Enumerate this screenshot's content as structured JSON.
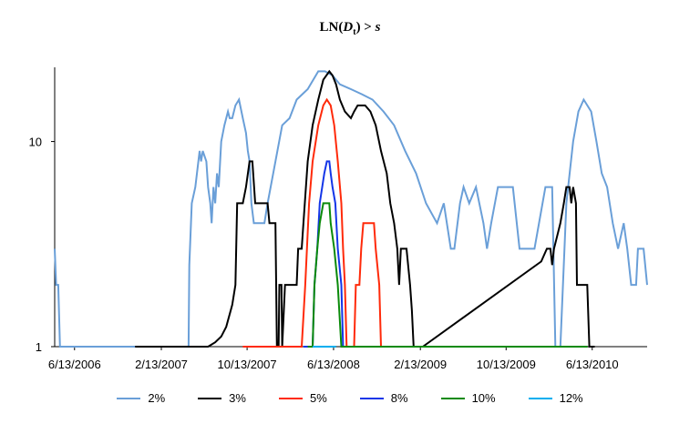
{
  "chart_data": {
    "type": "line",
    "title": "LN(Dt) > s",
    "title_main": "LN(",
    "title_italic_d": "D",
    "title_sub_t": "t",
    "title_rest": ") > ",
    "title_italic_s": "s",
    "yscale": "log",
    "ylim": [
      1,
      23
    ],
    "xlim": [
      "2006-04-18",
      "2010-11-15"
    ],
    "y_ticks": [
      1,
      10
    ],
    "y_tick_labels": [
      "1",
      "10"
    ],
    "x_ticks": [
      "2006-06-13",
      "2007-02-13",
      "2007-10-13",
      "2008-06-13",
      "2009-02-13",
      "2009-10-13",
      "2010-06-13"
    ],
    "x_tick_labels": [
      "6/13/2006",
      "2/13/2007",
      "10/13/2007",
      "6/13/2008",
      "2/13/2009",
      "10/13/2009",
      "6/13/2010"
    ],
    "grid": false,
    "legend_position": "bottom",
    "series": [
      {
        "name": "2%",
        "color": "#6a9fd8",
        "points": [
          [
            "2006-04-18",
            3
          ],
          [
            "2006-04-22",
            2
          ],
          [
            "2006-04-28",
            2
          ],
          [
            "2006-05-03",
            1
          ],
          [
            "2007-05-01",
            1
          ],
          [
            "2007-05-03",
            2.5
          ],
          [
            "2007-05-10",
            5
          ],
          [
            "2007-05-20",
            6
          ],
          [
            "2007-06-01",
            9
          ],
          [
            "2007-06-05",
            8
          ],
          [
            "2007-06-10",
            9
          ],
          [
            "2007-06-20",
            8
          ],
          [
            "2007-06-25",
            6
          ],
          [
            "2007-07-01",
            5
          ],
          [
            "2007-07-05",
            4
          ],
          [
            "2007-07-10",
            6
          ],
          [
            "2007-07-15",
            5
          ],
          [
            "2007-07-20",
            7
          ],
          [
            "2007-07-25",
            6
          ],
          [
            "2007-08-01",
            10
          ],
          [
            "2007-08-10",
            12
          ],
          [
            "2007-08-20",
            14
          ],
          [
            "2007-08-25",
            13
          ],
          [
            "2007-09-01",
            13
          ],
          [
            "2007-09-10",
            15
          ],
          [
            "2007-09-20",
            16
          ],
          [
            "2007-10-01",
            13
          ],
          [
            "2007-10-10",
            11
          ],
          [
            "2007-10-15",
            9
          ],
          [
            "2007-10-20",
            8
          ],
          [
            "2007-10-25",
            5
          ],
          [
            "2007-11-01",
            4
          ],
          [
            "2007-12-01",
            4
          ],
          [
            "2007-12-10",
            5
          ],
          [
            "2008-01-01",
            8
          ],
          [
            "2008-01-20",
            12
          ],
          [
            "2008-02-10",
            13
          ],
          [
            "2008-03-01",
            16
          ],
          [
            "2008-04-01",
            18
          ],
          [
            "2008-05-01",
            22
          ],
          [
            "2008-05-20",
            22
          ],
          [
            "2008-06-10",
            21
          ],
          [
            "2008-07-01",
            19
          ],
          [
            "2008-08-01",
            18
          ],
          [
            "2008-09-01",
            17
          ],
          [
            "2008-10-01",
            16
          ],
          [
            "2008-11-01",
            14
          ],
          [
            "2008-12-01",
            12
          ],
          [
            "2009-01-01",
            9
          ],
          [
            "2009-02-01",
            7
          ],
          [
            "2009-03-01",
            5
          ],
          [
            "2009-04-01",
            4
          ],
          [
            "2009-04-20",
            5
          ],
          [
            "2009-05-10",
            3
          ],
          [
            "2009-05-20",
            3
          ],
          [
            "2009-06-05",
            5
          ],
          [
            "2009-06-15",
            6
          ],
          [
            "2009-07-01",
            5
          ],
          [
            "2009-07-20",
            6
          ],
          [
            "2009-08-10",
            4
          ],
          [
            "2009-08-20",
            3
          ],
          [
            "2009-09-01",
            4
          ],
          [
            "2009-09-20",
            6
          ],
          [
            "2009-10-13",
            6
          ],
          [
            "2009-11-01",
            6
          ],
          [
            "2009-11-20",
            3
          ],
          [
            "2009-12-10",
            3
          ],
          [
            "2010-01-01",
            3
          ],
          [
            "2010-02-01",
            6
          ],
          [
            "2010-02-20",
            6
          ],
          [
            "2010-03-01",
            1
          ],
          [
            "2010-03-15",
            1
          ],
          [
            "2010-04-01",
            5
          ],
          [
            "2010-04-20",
            10
          ],
          [
            "2010-05-05",
            14
          ],
          [
            "2010-05-20",
            16
          ],
          [
            "2010-06-10",
            14
          ],
          [
            "2010-06-25",
            10
          ],
          [
            "2010-07-10",
            7
          ],
          [
            "2010-07-25",
            6
          ],
          [
            "2010-08-10",
            4
          ],
          [
            "2010-08-25",
            3
          ],
          [
            "2010-09-10",
            4
          ],
          [
            "2010-09-20",
            3
          ],
          [
            "2010-10-01",
            2
          ],
          [
            "2010-10-15",
            2
          ],
          [
            "2010-10-20",
            3
          ],
          [
            "2010-11-05",
            3
          ],
          [
            "2010-11-15",
            2
          ]
        ]
      },
      {
        "name": "3%",
        "color": "#000000",
        "points": [
          [
            "2006-12-01",
            1
          ],
          [
            "2007-06-25",
            1
          ],
          [
            "2007-07-15",
            1.05
          ],
          [
            "2007-08-01",
            1.12
          ],
          [
            "2007-08-15",
            1.25
          ],
          [
            "2007-09-01",
            1.6
          ],
          [
            "2007-09-10",
            2
          ],
          [
            "2007-09-15",
            5
          ],
          [
            "2007-10-01",
            5
          ],
          [
            "2007-10-10",
            6
          ],
          [
            "2007-10-20",
            8
          ],
          [
            "2007-10-28",
            8
          ],
          [
            "2007-11-05",
            5
          ],
          [
            "2007-11-15",
            5
          ],
          [
            "2007-12-10",
            5
          ],
          [
            "2007-12-15",
            4
          ],
          [
            "2008-01-01",
            4
          ],
          [
            "2008-01-05",
            1
          ],
          [
            "2008-01-10",
            1
          ],
          [
            "2008-01-12",
            2
          ],
          [
            "2008-01-18",
            2
          ],
          [
            "2008-01-20",
            1
          ],
          [
            "2008-01-28",
            2
          ],
          [
            "2008-03-01",
            2
          ],
          [
            "2008-03-05",
            3
          ],
          [
            "2008-03-15",
            3
          ],
          [
            "2008-03-20",
            4
          ],
          [
            "2008-04-01",
            8
          ],
          [
            "2008-04-15",
            12
          ],
          [
            "2008-05-01",
            16
          ],
          [
            "2008-05-15",
            20
          ],
          [
            "2008-06-01",
            22
          ],
          [
            "2008-06-10",
            21
          ],
          [
            "2008-06-20",
            19
          ],
          [
            "2008-07-01",
            16
          ],
          [
            "2008-07-15",
            14
          ],
          [
            "2008-08-01",
            13
          ],
          [
            "2008-08-10",
            14
          ],
          [
            "2008-08-20",
            15
          ],
          [
            "2008-09-10",
            15
          ],
          [
            "2008-09-25",
            14
          ],
          [
            "2008-10-10",
            12
          ],
          [
            "2008-10-25",
            9
          ],
          [
            "2008-11-10",
            7
          ],
          [
            "2008-11-20",
            5
          ],
          [
            "2008-12-01",
            4
          ],
          [
            "2008-12-10",
            3
          ],
          [
            "2008-12-15",
            2
          ],
          [
            "2008-12-20",
            3
          ],
          [
            "2009-01-05",
            3
          ],
          [
            "2009-01-15",
            2
          ],
          [
            "2009-01-20",
            1.5
          ],
          [
            "2009-01-25",
            1
          ],
          [
            "2009-02-20",
            1
          ],
          [
            "2010-01-20",
            2.6
          ],
          [
            "2010-02-05",
            3
          ],
          [
            "2010-02-15",
            3
          ],
          [
            "2010-02-20",
            2.5
          ],
          [
            "2010-02-25",
            3
          ],
          [
            "2010-03-15",
            4
          ],
          [
            "2010-03-25",
            5
          ],
          [
            "2010-04-01",
            6
          ],
          [
            "2010-04-10",
            6
          ],
          [
            "2010-04-15",
            5
          ],
          [
            "2010-04-20",
            6
          ],
          [
            "2010-04-28",
            5
          ],
          [
            "2010-05-01",
            2
          ],
          [
            "2010-05-30",
            2
          ],
          [
            "2010-06-05",
            1
          ],
          [
            "2010-06-20",
            1
          ]
        ]
      },
      {
        "name": "5%",
        "color": "#ff2a0a",
        "points": [
          [
            "2007-10-01",
            1
          ],
          [
            "2008-03-15",
            1
          ],
          [
            "2008-03-25",
            2
          ],
          [
            "2008-04-05",
            5
          ],
          [
            "2008-04-15",
            8
          ],
          [
            "2008-05-01",
            12
          ],
          [
            "2008-05-15",
            15
          ],
          [
            "2008-05-25",
            16
          ],
          [
            "2008-06-05",
            15
          ],
          [
            "2008-06-15",
            12
          ],
          [
            "2008-06-25",
            8
          ],
          [
            "2008-07-05",
            5
          ],
          [
            "2008-07-10",
            3
          ],
          [
            "2008-07-15",
            2
          ],
          [
            "2008-07-20",
            1
          ],
          [
            "2008-08-10",
            1
          ],
          [
            "2008-08-15",
            2
          ],
          [
            "2008-08-25",
            2
          ],
          [
            "2008-08-30",
            3
          ],
          [
            "2008-09-05",
            4
          ],
          [
            "2008-10-05",
            4
          ],
          [
            "2008-10-10",
            3
          ],
          [
            "2008-10-20",
            2
          ],
          [
            "2008-10-25",
            1
          ],
          [
            "2009-01-10",
            1
          ]
        ]
      },
      {
        "name": "8%",
        "color": "#1436e8",
        "points": [
          [
            "2008-03-20",
            1
          ],
          [
            "2008-04-15",
            1
          ],
          [
            "2008-04-20",
            2
          ],
          [
            "2008-04-28",
            3
          ],
          [
            "2008-05-05",
            5
          ],
          [
            "2008-05-12",
            6
          ],
          [
            "2008-05-18",
            7
          ],
          [
            "2008-05-25",
            8
          ],
          [
            "2008-06-01",
            8
          ],
          [
            "2008-06-05",
            7
          ],
          [
            "2008-06-10",
            6
          ],
          [
            "2008-06-18",
            5
          ],
          [
            "2008-06-25",
            3
          ],
          [
            "2008-07-05",
            2
          ],
          [
            "2008-07-10",
            1
          ],
          [
            "2008-07-20",
            1
          ]
        ]
      },
      {
        "name": "10%",
        "color": "#0a8a0a",
        "points": [
          [
            "2008-04-01",
            1
          ],
          [
            "2008-04-15",
            1
          ],
          [
            "2008-04-20",
            2
          ],
          [
            "2008-04-28",
            3
          ],
          [
            "2008-05-05",
            4
          ],
          [
            "2008-05-15",
            5
          ],
          [
            "2008-06-01",
            5
          ],
          [
            "2008-06-05",
            4
          ],
          [
            "2008-06-15",
            3
          ],
          [
            "2008-06-25",
            2
          ],
          [
            "2008-07-05",
            1
          ],
          [
            "2009-02-01",
            1
          ],
          [
            "2010-05-31",
            1
          ]
        ]
      },
      {
        "name": "12%",
        "color": "#00aeef",
        "points": [
          [
            "2008-04-15",
            1
          ],
          [
            "2008-06-20",
            1
          ]
        ]
      }
    ]
  }
}
